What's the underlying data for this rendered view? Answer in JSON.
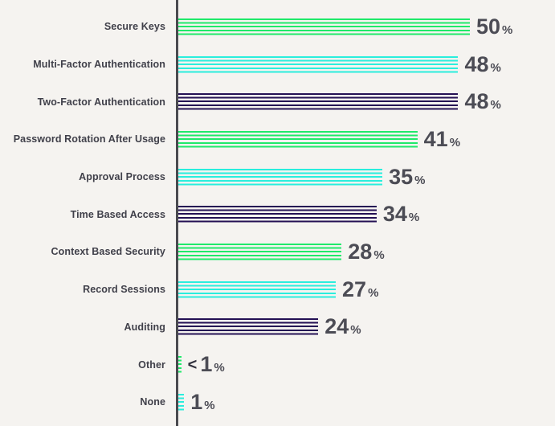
{
  "background_color": "#f5f3f0",
  "chart_data": {
    "type": "bar",
    "orientation": "horizontal",
    "bar_pattern": "horizontal-stripes",
    "unit": "%",
    "xlim": [
      0,
      50
    ],
    "axis_color": "#4a4a4f",
    "label_color": "#40404a",
    "value_color": "#4c4c55",
    "colors": {
      "green": "#1fe96a",
      "cyan": "#2aeedd",
      "navy": "#241054"
    },
    "categories": [
      "Secure Keys",
      "Multi-Factor Authentication",
      "Two-Factor Authentication",
      "Password Rotation After Usage",
      "Approval Process",
      "Time Based Access",
      "Context Based Security",
      "Record Sessions",
      "Auditing",
      "Other",
      "None"
    ],
    "values": [
      50,
      48,
      48,
      41,
      35,
      34,
      28,
      27,
      24,
      0.5,
      1
    ],
    "rows": [
      {
        "label": "Secure Keys",
        "value": 50,
        "display": "50",
        "prefix": "",
        "unit": "%",
        "color": "green"
      },
      {
        "label": "Multi-Factor Authentication",
        "value": 48,
        "display": "48",
        "prefix": "",
        "unit": "%",
        "color": "cyan"
      },
      {
        "label": "Two-Factor Authentication",
        "value": 48,
        "display": "48",
        "prefix": "",
        "unit": "%",
        "color": "navy"
      },
      {
        "label": "Password Rotation After Usage",
        "value": 41,
        "display": "41",
        "prefix": "",
        "unit": "%",
        "color": "green"
      },
      {
        "label": "Approval Process",
        "value": 35,
        "display": "35",
        "prefix": "",
        "unit": "%",
        "color": "cyan"
      },
      {
        "label": "Time Based Access",
        "value": 34,
        "display": "34",
        "prefix": "",
        "unit": "%",
        "color": "navy"
      },
      {
        "label": "Context Based Security",
        "value": 28,
        "display": "28",
        "prefix": "",
        "unit": "%",
        "color": "green"
      },
      {
        "label": "Record Sessions",
        "value": 27,
        "display": "27",
        "prefix": "",
        "unit": "%",
        "color": "cyan"
      },
      {
        "label": "Auditing",
        "value": 24,
        "display": "24",
        "prefix": "",
        "unit": "%",
        "color": "navy"
      },
      {
        "label": "Other",
        "value": 0.5,
        "display": "1",
        "prefix": "<",
        "unit": "%",
        "color": "green"
      },
      {
        "label": "None",
        "value": 1,
        "display": "1",
        "prefix": "",
        "unit": "%",
        "color": "cyan"
      }
    ]
  }
}
